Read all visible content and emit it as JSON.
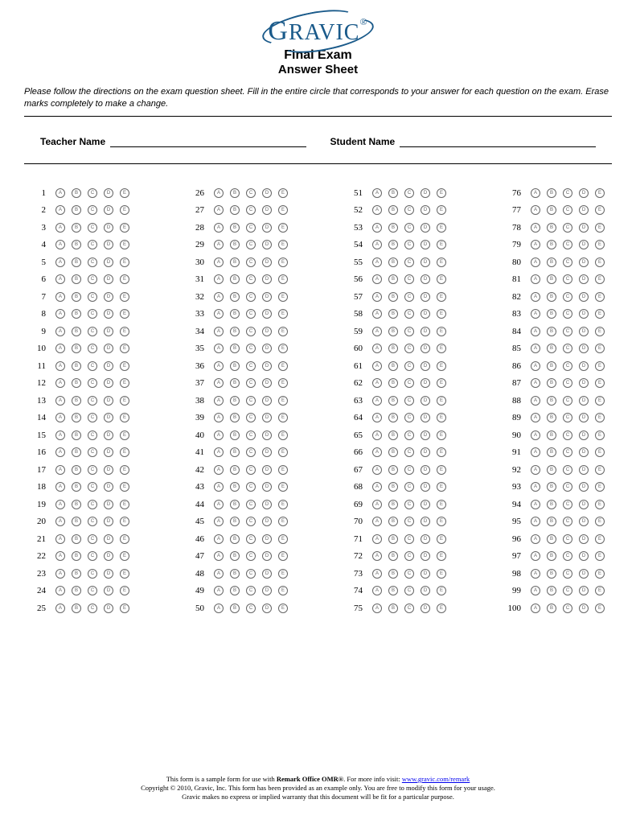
{
  "header": {
    "logo_text": "GRAVIC",
    "logo_suffix": "®",
    "title": "Final Exam",
    "subtitle": "Answer Sheet"
  },
  "instructions": "Please follow the directions on the exam question sheet. Fill in the entire circle that corresponds to your answer for each question on the exam. Erase marks completely to make a change.",
  "fields": {
    "teacher_label": "Teacher Name",
    "student_label": "Student Name"
  },
  "answers": {
    "num_questions": 100,
    "questions_per_column": 25,
    "options": [
      "A",
      "B",
      "C",
      "D",
      "E"
    ]
  },
  "footer": {
    "line1_a": "This form is a sample form for use with ",
    "line1_b": "Remark Office OMR®",
    "line1_c": ". For more info visit: ",
    "link_text": "www.gravic.com/remark",
    "line2": "Copyright © 2010, Gravic, Inc. This form has been provided as an example only. You are free to modify this form for your usage.",
    "line3": "Gravic makes no express or implied warranty that this document will be fit for a particular purpose."
  },
  "colors": {
    "logo": "#1a5a8a",
    "text": "#000000",
    "bubble_border": "#666666",
    "link": "#0000ee"
  }
}
